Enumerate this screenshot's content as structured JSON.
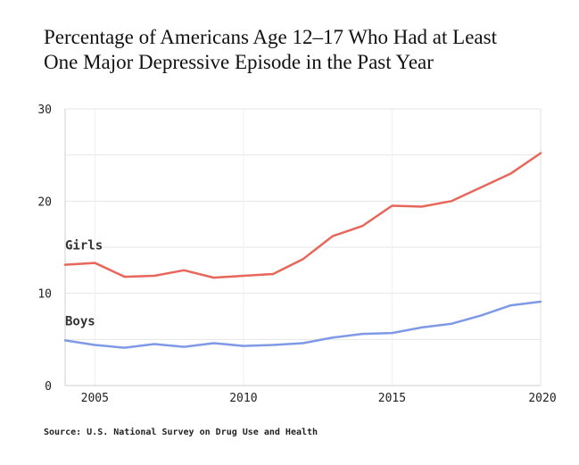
{
  "title_line1": "Percentage of Americans Age 12–17 Who Had at Least",
  "title_line2": "One Major Depressive Episode in the Past Year",
  "source": "Source: U.S. National Survey on Drug Use and Health",
  "chart_data": {
    "type": "line",
    "x": [
      2004,
      2005,
      2006,
      2007,
      2008,
      2009,
      2010,
      2011,
      2012,
      2013,
      2014,
      2015,
      2016,
      2017,
      2018,
      2019,
      2020
    ],
    "series": [
      {
        "name": "Girls",
        "color": "#e8665a",
        "values": [
          13.1,
          13.3,
          11.8,
          11.9,
          12.5,
          11.7,
          11.9,
          12.1,
          13.7,
          16.2,
          17.3,
          19.5,
          19.4,
          20.0,
          21.5,
          23.0,
          25.2
        ]
      },
      {
        "name": "Boys",
        "color": "#7f99e6",
        "values": [
          4.9,
          4.4,
          4.1,
          4.5,
          4.2,
          4.6,
          4.3,
          4.4,
          4.6,
          5.2,
          5.6,
          5.7,
          6.3,
          6.7,
          7.6,
          8.7,
          9.1
        ]
      }
    ],
    "xticks": [
      2005,
      2010,
      2015,
      2020
    ],
    "yticks": [
      0,
      10,
      20,
      30
    ],
    "ylim": [
      0,
      30
    ],
    "xlim": [
      2004,
      2020
    ],
    "grid": "horizontal",
    "legend": "inline labels"
  }
}
